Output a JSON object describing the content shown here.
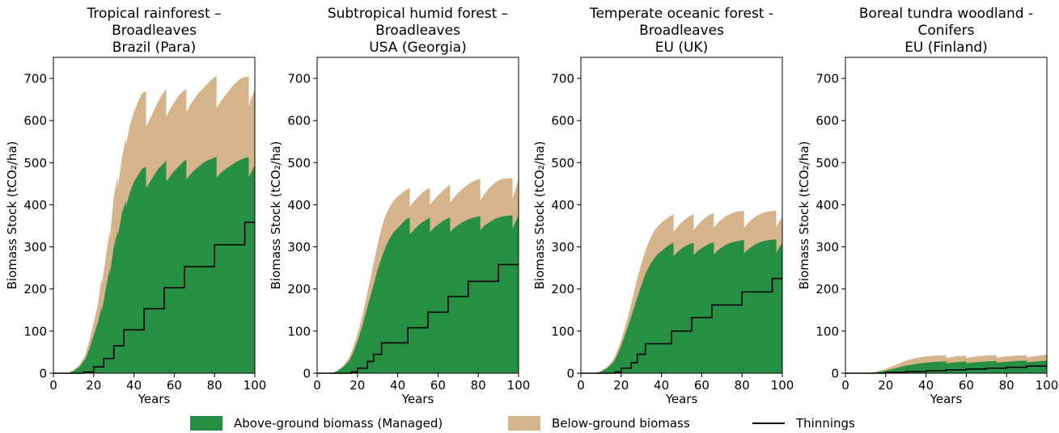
{
  "chart_data": [
    {
      "type": "area",
      "title": [
        "Tropical rainforest –",
        "Broadleaves",
        "Brazil (Para)"
      ],
      "xlabel": "Years",
      "ylabel": "Biomass Stock (tCO₂/ha)",
      "xlim": [
        0,
        100
      ],
      "ylim": [
        0,
        750
      ],
      "xticks": [
        "0",
        "20",
        "40",
        "60",
        "80",
        "100"
      ],
      "yticks": [
        "0",
        "100",
        "200",
        "300",
        "400",
        "500",
        "600",
        "700"
      ],
      "series": [
        {
          "name": "Above-ground biomass (Managed)",
          "x": [
            0,
            7,
            10,
            13,
            16,
            18,
            20,
            22,
            24,
            24.01,
            26,
            28,
            28.01,
            30,
            32,
            32.01,
            34,
            36,
            36.01,
            38,
            40,
            42,
            44,
            46,
            46.01,
            48,
            50,
            52,
            54,
            56,
            56.01,
            58,
            60,
            62,
            64,
            66,
            66.01,
            68,
            70,
            72,
            74,
            76,
            78,
            80,
            81,
            81.01,
            83,
            85,
            87,
            89,
            91,
            93,
            95,
            97,
            97.01,
            98,
            100
          ],
          "y": [
            0,
            0,
            5,
            15,
            35,
            60,
            90,
            120,
            160,
            145,
            200,
            250,
            235,
            300,
            340,
            325,
            380,
            410,
            395,
            430,
            455,
            470,
            485,
            490,
            440,
            455,
            470,
            485,
            495,
            505,
            455,
            468,
            480,
            490,
            500,
            508,
            460,
            472,
            482,
            490,
            498,
            504,
            508,
            512,
            513,
            465,
            475,
            483,
            490,
            496,
            502,
            507,
            511,
            513,
            465,
            475,
            495
          ]
        },
        {
          "name": "Below-ground biomass",
          "x": [
            0,
            7,
            10,
            13,
            16,
            18,
            20,
            22,
            24,
            24.01,
            26,
            28,
            28.01,
            30,
            32,
            32.01,
            34,
            36,
            36.01,
            38,
            40,
            42,
            44,
            46,
            46.01,
            48,
            50,
            52,
            54,
            56,
            56.01,
            58,
            60,
            62,
            64,
            66,
            66.01,
            68,
            70,
            72,
            74,
            76,
            78,
            80,
            81,
            81.01,
            83,
            85,
            87,
            89,
            91,
            93,
            95,
            97,
            97.01,
            98,
            100
          ],
          "y": [
            0,
            0,
            8,
            20,
            45,
            80,
            120,
            160,
            230,
            210,
            275,
            340,
            320,
            420,
            470,
            440,
            510,
            560,
            540,
            590,
            620,
            645,
            665,
            670,
            585,
            605,
            625,
            645,
            662,
            675,
            610,
            628,
            643,
            658,
            668,
            675,
            620,
            638,
            652,
            665,
            675,
            685,
            695,
            703,
            705,
            630,
            645,
            658,
            670,
            682,
            692,
            700,
            703,
            705,
            635,
            650,
            675
          ]
        },
        {
          "name": "Thinnings",
          "x": [
            0,
            15,
            15,
            20,
            20,
            25,
            25,
            30,
            30,
            35,
            35,
            45,
            45,
            55,
            55,
            65,
            65,
            80,
            80,
            95,
            95,
            100
          ],
          "y": [
            0,
            0,
            3,
            3,
            15,
            15,
            35,
            35,
            65,
            65,
            103,
            103,
            153,
            153,
            203,
            203,
            253,
            253,
            305,
            305,
            358,
            358
          ]
        }
      ]
    },
    {
      "type": "area",
      "title": [
        "Subtropical humid forest –",
        "Broadleaves",
        "USA (Georgia)"
      ],
      "xlabel": "Years",
      "ylabel": "Biomass Stock (tCO₂/ha)",
      "xlim": [
        0,
        100
      ],
      "ylim": [
        0,
        750
      ],
      "xticks": [
        "0",
        "20",
        "40",
        "60",
        "80",
        "100"
      ],
      "yticks": [
        "0",
        "100",
        "200",
        "300",
        "400",
        "500",
        "600",
        "700"
      ],
      "series": [
        {
          "name": "Above-ground biomass (Managed)",
          "x": [
            0,
            7,
            10,
            13,
            16,
            18,
            20,
            22,
            24,
            26,
            28,
            30,
            32,
            34,
            36,
            38,
            40,
            42,
            44,
            46,
            46.01,
            48,
            50,
            52,
            54,
            56,
            56.01,
            58,
            60,
            62,
            64,
            66,
            66.01,
            68,
            70,
            72,
            74,
            76,
            78,
            80,
            81,
            81.01,
            83,
            85,
            87,
            89,
            91,
            93,
            95,
            97,
            97.01,
            98,
            100
          ],
          "y": [
            0,
            0,
            5,
            15,
            30,
            50,
            75,
            105,
            140,
            175,
            210,
            245,
            275,
            300,
            320,
            335,
            345,
            355,
            365,
            370,
            330,
            340,
            350,
            358,
            364,
            370,
            335,
            345,
            353,
            360,
            366,
            370,
            335,
            345,
            352,
            358,
            363,
            367,
            370,
            372,
            373,
            340,
            350,
            357,
            363,
            368,
            371,
            373,
            374,
            375,
            342,
            355,
            375
          ]
        },
        {
          "name": "Below-ground biomass",
          "x": [
            0,
            7,
            10,
            13,
            16,
            18,
            20,
            22,
            24,
            26,
            28,
            30,
            32,
            34,
            36,
            38,
            40,
            42,
            44,
            46,
            46.01,
            48,
            50,
            52,
            54,
            56,
            56.01,
            58,
            60,
            62,
            64,
            66,
            66.01,
            68,
            70,
            72,
            74,
            76,
            78,
            80,
            81,
            81.01,
            83,
            85,
            87,
            89,
            91,
            93,
            95,
            97,
            97.01,
            98,
            100
          ],
          "y": [
            0,
            0,
            6,
            18,
            38,
            62,
            92,
            128,
            170,
            215,
            260,
            305,
            345,
            375,
            395,
            410,
            420,
            428,
            435,
            440,
            395,
            408,
            418,
            428,
            435,
            440,
            400,
            412,
            422,
            432,
            440,
            448,
            405,
            418,
            428,
            437,
            445,
            452,
            457,
            460,
            462,
            410,
            425,
            437,
            447,
            455,
            460,
            462,
            463,
            463,
            415,
            430,
            462
          ]
        },
        {
          "name": "Thinnings",
          "x": [
            0,
            17,
            17,
            20,
            20,
            25,
            25,
            28,
            28,
            32,
            32,
            38,
            38,
            45,
            45,
            55,
            55,
            65,
            65,
            75,
            75,
            90,
            90,
            100
          ],
          "y": [
            0,
            0,
            3,
            3,
            12,
            12,
            28,
            28,
            45,
            45,
            72,
            72,
            72,
            72,
            108,
            108,
            145,
            145,
            182,
            182,
            218,
            218,
            258,
            258
          ]
        }
      ]
    },
    {
      "type": "area",
      "title": [
        "Temperate oceanic forest -",
        "Broadleaves",
        "EU (UK)"
      ],
      "xlabel": "Years",
      "ylabel": "Biomass Stock (tCO₂/ha)",
      "xlim": [
        0,
        100
      ],
      "ylim": [
        0,
        750
      ],
      "xticks": [
        "0",
        "20",
        "40",
        "60",
        "80",
        "100"
      ],
      "yticks": [
        "0",
        "100",
        "200",
        "300",
        "400",
        "500",
        "600",
        "700"
      ],
      "series": [
        {
          "name": "Above-ground biomass (Managed)",
          "x": [
            0,
            7,
            10,
            13,
            16,
            18,
            20,
            22,
            24,
            26,
            28,
            30,
            32,
            34,
            36,
            38,
            40,
            42,
            44,
            46,
            46.01,
            48,
            50,
            52,
            54,
            56,
            56.01,
            58,
            60,
            62,
            64,
            66,
            66.01,
            68,
            70,
            72,
            74,
            76,
            78,
            80,
            81,
            81.01,
            83,
            85,
            87,
            89,
            91,
            93,
            95,
            97,
            97.01,
            98,
            100
          ],
          "y": [
            0,
            0,
            4,
            12,
            25,
            42,
            65,
            92,
            120,
            150,
            180,
            208,
            235,
            255,
            270,
            282,
            290,
            298,
            305,
            310,
            278,
            288,
            296,
            302,
            307,
            310,
            280,
            290,
            297,
            303,
            308,
            311,
            282,
            292,
            299,
            305,
            309,
            312,
            314,
            316,
            317,
            285,
            294,
            301,
            307,
            311,
            314,
            316,
            317,
            318,
            285,
            295,
            310
          ]
        },
        {
          "name": "Below-ground biomass",
          "x": [
            0,
            7,
            10,
            13,
            16,
            18,
            20,
            22,
            24,
            26,
            28,
            30,
            32,
            34,
            36,
            38,
            40,
            42,
            44,
            46,
            46.01,
            48,
            50,
            52,
            54,
            56,
            56.01,
            58,
            60,
            62,
            64,
            66,
            66.01,
            68,
            70,
            72,
            74,
            76,
            78,
            80,
            81,
            81.01,
            83,
            85,
            87,
            89,
            91,
            93,
            95,
            97,
            97.01,
            98,
            100
          ],
          "y": [
            0,
            0,
            5,
            15,
            32,
            52,
            78,
            110,
            145,
            185,
            225,
            260,
            290,
            315,
            335,
            348,
            358,
            365,
            372,
            378,
            335,
            348,
            358,
            366,
            373,
            378,
            340,
            352,
            362,
            370,
            376,
            380,
            345,
            357,
            366,
            373,
            378,
            382,
            384,
            385,
            386,
            345,
            357,
            366,
            373,
            378,
            382,
            384,
            385,
            386,
            347,
            356,
            372
          ]
        },
        {
          "name": "Thinnings",
          "x": [
            0,
            17,
            17,
            20,
            20,
            25,
            25,
            28,
            28,
            32,
            32,
            38,
            38,
            45,
            45,
            55,
            55,
            65,
            65,
            80,
            80,
            95,
            95,
            100
          ],
          "y": [
            0,
            0,
            3,
            3,
            12,
            12,
            25,
            25,
            45,
            45,
            70,
            70,
            70,
            70,
            100,
            100,
            132,
            132,
            162,
            162,
            193,
            193,
            225,
            225
          ]
        }
      ]
    },
    {
      "type": "area",
      "title": [
        "Boreal tundra woodland -",
        "Conifers",
        "EU (Finland)"
      ],
      "xlabel": "Years",
      "ylabel": "Biomass Stock (tCO₂/ha)",
      "xlim": [
        0,
        100
      ],
      "ylim": [
        0,
        750
      ],
      "xticks": [
        "0",
        "20",
        "40",
        "60",
        "80",
        "100"
      ],
      "yticks": [
        "0",
        "100",
        "200",
        "300",
        "400",
        "500",
        "600",
        "700"
      ],
      "series": [
        {
          "name": "Above-ground biomass (Managed)",
          "x": [
            0,
            10,
            15,
            20,
            25,
            30,
            35,
            40,
            45,
            50,
            50.01,
            55,
            60,
            60.01,
            65,
            70,
            75,
            75.01,
            80,
            85,
            90,
            90.01,
            95,
            100
          ],
          "y": [
            0,
            0,
            2,
            6,
            12,
            18,
            22,
            25,
            27,
            28,
            24,
            26,
            28,
            24,
            26,
            28,
            29,
            25,
            27,
            29,
            30,
            26,
            28,
            30
          ]
        },
        {
          "name": "Below-ground biomass",
          "x": [
            0,
            10,
            15,
            20,
            25,
            30,
            35,
            40,
            45,
            50,
            50.01,
            55,
            60,
            60.01,
            65,
            70,
            75,
            75.01,
            80,
            85,
            90,
            90.01,
            95,
            100
          ],
          "y": [
            0,
            0,
            3,
            10,
            20,
            30,
            36,
            40,
            42,
            43,
            36,
            40,
            42,
            36,
            40,
            42,
            43,
            37,
            40,
            42,
            43,
            38,
            41,
            44
          ]
        },
        {
          "name": "Thinnings",
          "x": [
            0,
            20,
            20,
            30,
            30,
            40,
            40,
            50,
            50,
            60,
            60,
            70,
            70,
            80,
            80,
            90,
            90,
            100
          ],
          "y": [
            0,
            0,
            2,
            2,
            4,
            4,
            6,
            6,
            8,
            8,
            10,
            10,
            12,
            12,
            14,
            14,
            17,
            17
          ]
        }
      ]
    }
  ],
  "legend": {
    "items": [
      {
        "label": "Above-ground biomass (Managed)",
        "color": "#278f43",
        "kind": "patch"
      },
      {
        "label": "Below-ground biomass",
        "color": "#d5b48c",
        "kind": "patch"
      },
      {
        "label": "Thinnings",
        "color": "#000000",
        "kind": "line"
      }
    ]
  }
}
